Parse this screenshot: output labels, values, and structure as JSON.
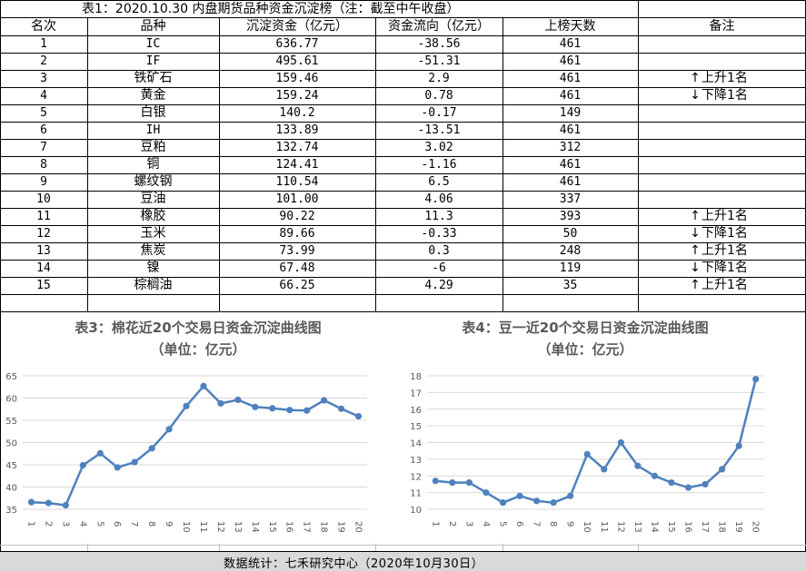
{
  "table": {
    "title": "表1：2020.10.30 内盘期货品种资金沉淀榜（注：截至中午收盘）",
    "headers": [
      "名次",
      "品种",
      "沉淀资金（亿元）",
      "资金流向（亿元）",
      "上榜天数",
      "备注"
    ],
    "rows": [
      {
        "rank": "1",
        "name": "IC",
        "fund": "636.77",
        "flow": "-38.56",
        "days": "461",
        "note": "",
        "dir": ""
      },
      {
        "rank": "2",
        "name": "IF",
        "fund": "495.61",
        "flow": "-51.31",
        "days": "461",
        "note": "",
        "dir": ""
      },
      {
        "rank": "3",
        "name": "铁矿石",
        "fund": "159.46",
        "flow": "2.9",
        "days": "461",
        "note": "上升1名",
        "dir": "up"
      },
      {
        "rank": "4",
        "name": "黄金",
        "fund": "159.24",
        "flow": "0.78",
        "days": "461",
        "note": "下降1名",
        "dir": "down"
      },
      {
        "rank": "5",
        "name": "白银",
        "fund": "140.2",
        "flow": "-0.17",
        "days": "149",
        "note": "",
        "dir": ""
      },
      {
        "rank": "6",
        "name": "IH",
        "fund": "133.89",
        "flow": "-13.51",
        "days": "461",
        "note": "",
        "dir": ""
      },
      {
        "rank": "7",
        "name": "豆粕",
        "fund": "132.74",
        "flow": "3.02",
        "days": "312",
        "note": "",
        "dir": ""
      },
      {
        "rank": "8",
        "name": "铜",
        "fund": "124.41",
        "flow": "-1.16",
        "days": "461",
        "note": "",
        "dir": ""
      },
      {
        "rank": "9",
        "name": "螺纹钢",
        "fund": "110.54",
        "flow": "6.5",
        "days": "461",
        "note": "",
        "dir": ""
      },
      {
        "rank": "10",
        "name": "豆油",
        "fund": "101.00",
        "flow": "4.06",
        "days": "337",
        "note": "",
        "dir": ""
      },
      {
        "rank": "11",
        "name": "橡胶",
        "fund": "90.22",
        "flow": "11.3",
        "days": "393",
        "note": "上升1名",
        "dir": "up"
      },
      {
        "rank": "12",
        "name": "玉米",
        "fund": "89.66",
        "flow": "-0.33",
        "days": "50",
        "note": "下降1名",
        "dir": "down"
      },
      {
        "rank": "13",
        "name": "焦炭",
        "fund": "73.99",
        "flow": "0.3",
        "days": "248",
        "note": "上升1名",
        "dir": "up"
      },
      {
        "rank": "14",
        "name": "镍",
        "fund": "67.48",
        "flow": "-6",
        "days": "119",
        "note": "下降1名",
        "dir": "down"
      },
      {
        "rank": "15",
        "name": "棕榈油",
        "fund": "66.25",
        "flow": "4.29",
        "days": "35",
        "note": "上升1名",
        "dir": "up"
      }
    ]
  },
  "chart_data": [
    {
      "type": "line",
      "title": "表3：棉花近20个交易日资金沉淀曲线图",
      "subtitle": "（单位：亿元）",
      "x": [
        "1",
        "2",
        "3",
        "4",
        "5",
        "6",
        "7",
        "8",
        "9",
        "10",
        "11",
        "12",
        "13",
        "14",
        "15",
        "16",
        "17",
        "18",
        "19",
        "20"
      ],
      "series": [
        {
          "values": [
            36.6,
            36.4,
            35.9,
            44.9,
            47.6,
            44.4,
            45.6,
            48.7,
            53.0,
            58.2,
            62.7,
            58.8,
            59.6,
            58.0,
            57.7,
            57.3,
            57.2,
            59.5,
            57.6,
            55.9
          ]
        }
      ],
      "yticks": [
        35,
        40,
        45,
        50,
        55,
        60,
        65
      ],
      "ylim": [
        35,
        65
      ],
      "color": "#4f81bd",
      "grid": true
    },
    {
      "type": "line",
      "title": "表4：豆一近20个交易日资金沉淀曲线图",
      "subtitle": "（单位：亿元）",
      "x": [
        "1",
        "2",
        "3",
        "4",
        "5",
        "6",
        "7",
        "8",
        "9",
        "10",
        "11",
        "12",
        "13",
        "14",
        "15",
        "16",
        "17",
        "18",
        "19",
        "20"
      ],
      "series": [
        {
          "values": [
            11.7,
            11.6,
            11.6,
            11.0,
            10.4,
            10.8,
            10.5,
            10.4,
            10.8,
            13.3,
            12.4,
            14.0,
            12.6,
            12.0,
            11.6,
            11.3,
            11.5,
            12.4,
            13.8,
            17.8
          ]
        }
      ],
      "yticks": [
        10,
        11,
        12,
        13,
        14,
        15,
        16,
        17,
        18
      ],
      "ylim": [
        10,
        18
      ],
      "color": "#4f81bd",
      "grid": true
    }
  ],
  "footer": "数据统计：七禾研究中心（2020年10月30日）"
}
